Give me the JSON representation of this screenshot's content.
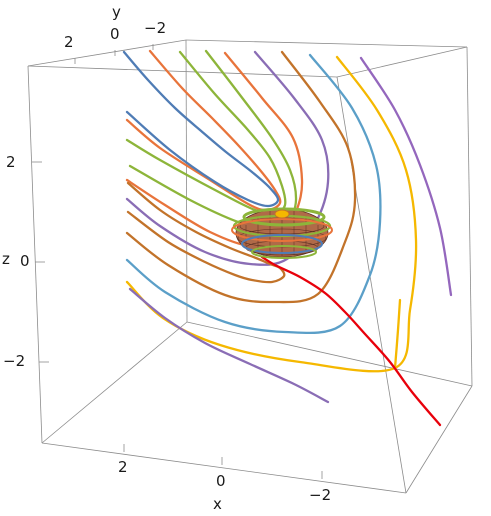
{
  "chart_data": {
    "type": "line",
    "projection": "3d",
    "axis_labels": {
      "x": "x",
      "y": "y",
      "z": "z"
    },
    "x_ticks": [
      2,
      0,
      -2
    ],
    "y_ticks": [
      2,
      0,
      -2
    ],
    "z_ticks": [
      2,
      0,
      -2
    ],
    "x_tick_labels": [
      "2",
      "0",
      "−2"
    ],
    "y_tick_labels": [
      "2",
      "0",
      "−2"
    ],
    "z_tick_labels": [
      "2",
      "0",
      "−2"
    ],
    "grid": false,
    "box": true,
    "legend": "none",
    "has_sphere": true,
    "colors": {
      "box": "#8c8c8c",
      "purple": "#9467bd",
      "yellow": "#f5b800",
      "blue": "#5b9fc8",
      "brown": "#c2732a",
      "violet": "#8a6db5",
      "orange": "#e8743b",
      "green": "#8db53a",
      "steel": "#4f7cb5",
      "red": "#e8000b",
      "sphere": "#b06a48"
    },
    "series": [
      {
        "color_key": "purple",
        "points": [
          [
            361,
            58
          ],
          [
            395,
            110
          ],
          [
            420,
            165
          ],
          [
            440,
            228
          ],
          [
            451,
            295
          ]
        ]
      },
      {
        "color_key": "yellow",
        "points": [
          [
            337,
            57
          ],
          [
            377,
            110
          ],
          [
            406,
            170
          ],
          [
            416,
            240
          ],
          [
            410,
            310
          ],
          [
            395,
            368
          ],
          [
            300,
            362
          ],
          [
            220,
            345
          ],
          [
            163,
            318
          ],
          [
            127,
            282
          ]
        ]
      },
      {
        "color_key": "blue",
        "points": [
          [
            310,
            55
          ],
          [
            352,
            108
          ],
          [
            376,
            165
          ],
          [
            380,
            222
          ],
          [
            370,
            275
          ],
          [
            340,
            326
          ],
          [
            285,
            332
          ],
          [
            225,
            322
          ],
          [
            165,
            292
          ],
          [
            127,
            260
          ]
        ]
      },
      {
        "color_key": "brown",
        "points": [
          [
            282,
            52
          ],
          [
            320,
            102
          ],
          [
            348,
            148
          ],
          [
            355,
            200
          ],
          [
            345,
            242
          ],
          [
            318,
            294
          ],
          [
            272,
            302
          ],
          [
            225,
            295
          ],
          [
            168,
            265
          ],
          [
            127,
            233
          ]
        ]
      },
      {
        "color_key": "violet",
        "points": [
          [
            255,
            52
          ],
          [
            294,
            98
          ],
          [
            322,
            140
          ],
          [
            328,
            182
          ],
          [
            316,
            222
          ],
          [
            287,
            259
          ],
          [
            250,
            264
          ],
          [
            205,
            252
          ],
          [
            160,
            226
          ],
          [
            127,
            199
          ]
        ]
      },
      {
        "color_key": "orange",
        "points": [
          [
            225,
            53
          ],
          [
            262,
            98
          ],
          [
            293,
            138
          ],
          [
            302,
            180
          ],
          [
            296,
            212
          ],
          [
            280,
            240
          ],
          [
            250,
            246
          ],
          [
            210,
            232
          ],
          [
            165,
            205
          ],
          [
            127,
            180
          ]
        ]
      },
      {
        "color_key": "green",
        "points": [
          [
            206,
            51
          ],
          [
            240,
            95
          ],
          [
            272,
            138
          ],
          [
            290,
            170
          ],
          [
            296,
            200
          ],
          [
            288,
            222
          ],
          [
            270,
            230
          ],
          [
            238,
            222
          ],
          [
            190,
            200
          ],
          [
            130,
            166
          ]
        ]
      },
      {
        "color_key": "green",
        "points": [
          [
            180,
            52
          ],
          [
            214,
            93
          ],
          [
            248,
            130
          ],
          [
            270,
            158
          ],
          [
            282,
            186
          ],
          [
            285,
            205
          ],
          [
            276,
            212
          ],
          [
            255,
            210
          ],
          [
            215,
            190
          ],
          [
            160,
            160
          ],
          [
            127,
            140
          ]
        ]
      },
      {
        "color_key": "orange",
        "points": [
          [
            150,
            51
          ],
          [
            182,
            88
          ],
          [
            212,
            118
          ],
          [
            238,
            145
          ],
          [
            260,
            170
          ],
          [
            275,
            190
          ],
          [
            280,
            203
          ],
          [
            268,
            210
          ],
          [
            250,
            205
          ],
          [
            210,
            180
          ],
          [
            160,
            148
          ],
          [
            127,
            120
          ]
        ]
      },
      {
        "color_key": "steel",
        "points": [
          [
            124,
            52
          ],
          [
            148,
            80
          ],
          [
            175,
            108
          ],
          [
            200,
            130
          ],
          [
            226,
            152
          ],
          [
            252,
            172
          ],
          [
            270,
            188
          ],
          [
            278,
            200
          ],
          [
            268,
            206
          ],
          [
            248,
            200
          ],
          [
            215,
            182
          ],
          [
            170,
            150
          ],
          [
            127,
            112
          ]
        ]
      },
      {
        "color_key": "brown",
        "points": [
          [
            128,
            183
          ],
          [
            160,
            210
          ],
          [
            196,
            232
          ],
          [
            230,
            248
          ],
          [
            256,
            258
          ],
          [
            270,
            264
          ],
          [
            280,
            268
          ],
          [
            284,
            276
          ],
          [
            272,
            282
          ],
          [
            252,
            280
          ],
          [
            235,
            275
          ],
          [
            205,
            262
          ],
          [
            168,
            242
          ],
          [
            128,
            212
          ]
        ]
      },
      {
        "color_key": "violet",
        "points": [
          [
            130,
            289
          ],
          [
            165,
            318
          ],
          [
            205,
            343
          ],
          [
            250,
            364
          ],
          [
            294,
            384
          ],
          [
            328,
            402
          ]
        ]
      },
      {
        "color_key": "yellow",
        "points": [
          [
            395,
            368
          ],
          [
            398,
            330
          ],
          [
            400,
            300
          ]
        ]
      },
      {
        "color_key": "red",
        "points": [
          [
            262,
            257
          ],
          [
            275,
            265
          ],
          [
            300,
            277
          ],
          [
            325,
            293
          ],
          [
            345,
            312
          ],
          [
            365,
            334
          ],
          [
            390,
            362
          ],
          [
            412,
            392
          ],
          [
            440,
            425
          ]
        ]
      }
    ]
  }
}
